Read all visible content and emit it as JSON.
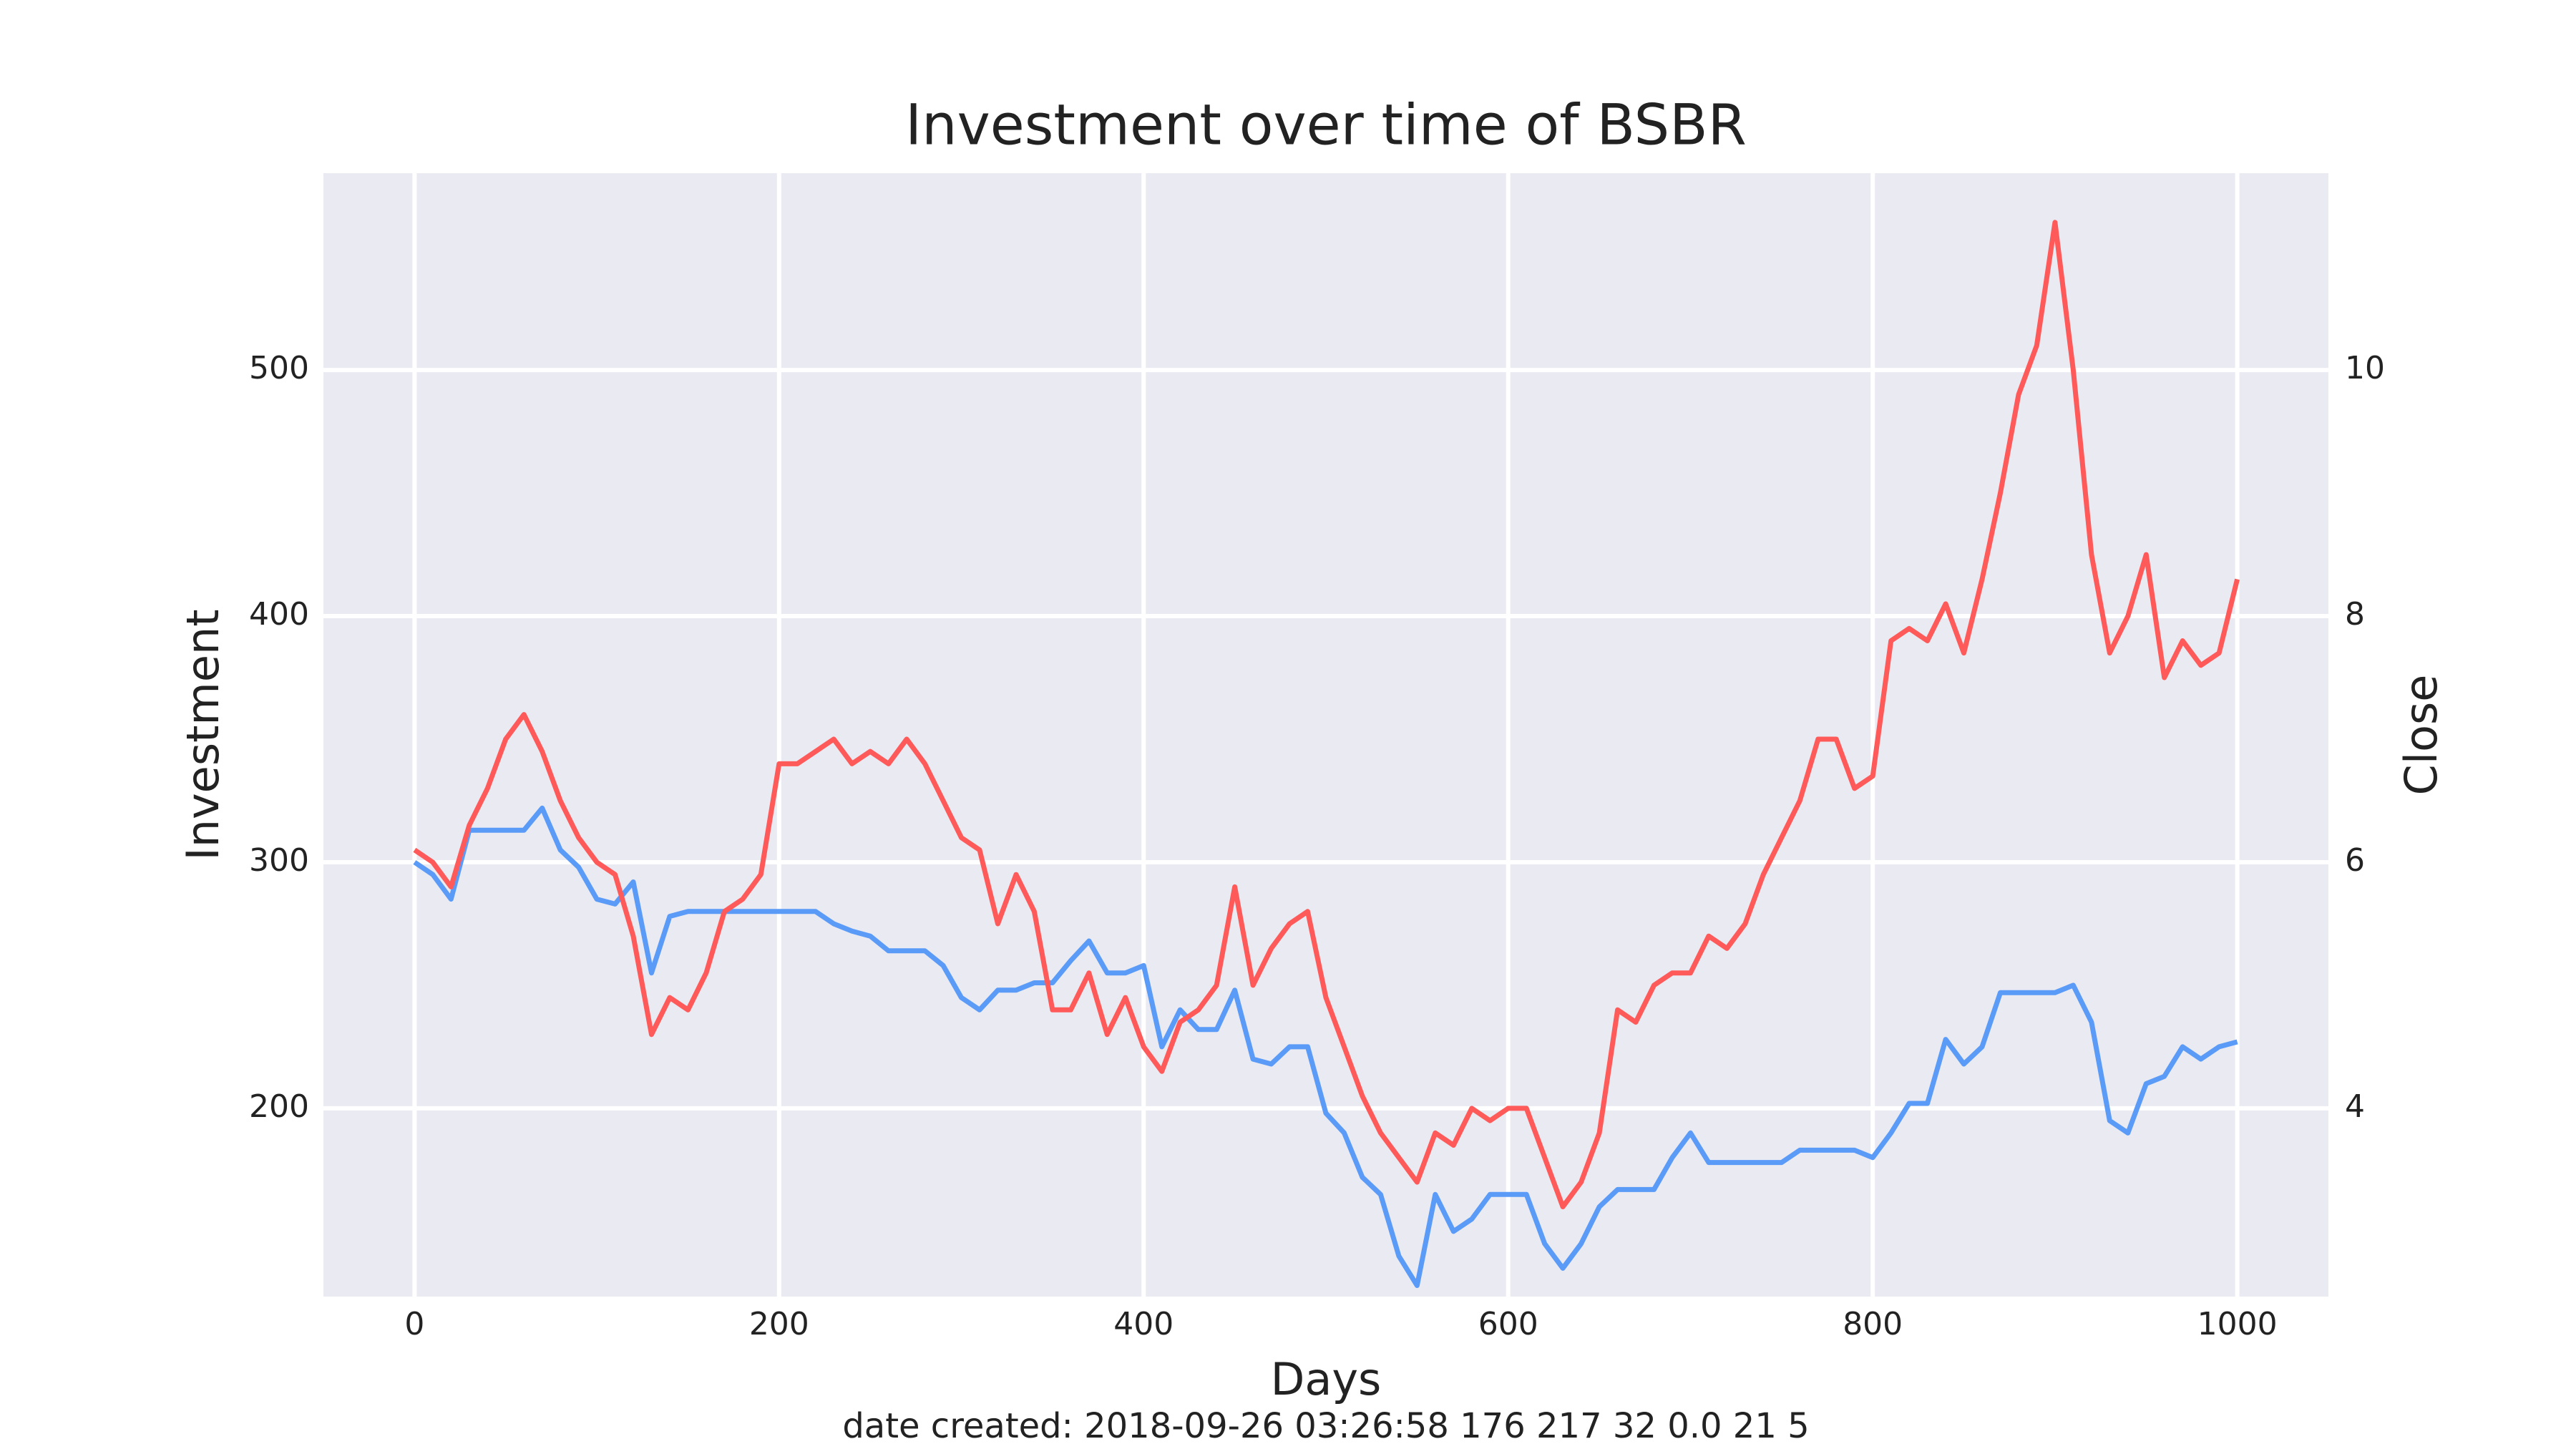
{
  "chart_data": {
    "type": "line",
    "title": "Investment over time of BSBR",
    "xlabel": "Days",
    "footer": "date created: 2018-09-26 03:26:58 176 217 32 0.0 21 5",
    "x": [
      0,
      10,
      20,
      30,
      40,
      50,
      60,
      70,
      80,
      90,
      100,
      110,
      120,
      130,
      140,
      150,
      160,
      170,
      180,
      190,
      200,
      210,
      220,
      230,
      240,
      250,
      260,
      270,
      280,
      290,
      300,
      310,
      320,
      330,
      340,
      350,
      360,
      370,
      380,
      390,
      400,
      410,
      420,
      430,
      440,
      450,
      460,
      470,
      480,
      490,
      500,
      510,
      520,
      530,
      540,
      550,
      560,
      570,
      580,
      590,
      600,
      610,
      620,
      630,
      640,
      650,
      660,
      670,
      680,
      690,
      700,
      710,
      720,
      730,
      740,
      750,
      760,
      770,
      780,
      790,
      800,
      810,
      820,
      830,
      840,
      850,
      860,
      870,
      880,
      890,
      900,
      910,
      920,
      930,
      940,
      950,
      960,
      970,
      980,
      990,
      1000
    ],
    "series": [
      {
        "name": "Investment",
        "color": "#5b9bf8",
        "axis": "y",
        "values": [
          300,
          295,
          285,
          313,
          313,
          313,
          313,
          322,
          305,
          298,
          285,
          283,
          292,
          255,
          278,
          280,
          280,
          280,
          280,
          280,
          280,
          280,
          280,
          275,
          272,
          270,
          264,
          264,
          264,
          258,
          245,
          240,
          248,
          248,
          251,
          251,
          260,
          268,
          255,
          255,
          258,
          225,
          240,
          232,
          232,
          248,
          220,
          218,
          225,
          225,
          198,
          190,
          172,
          165,
          140,
          128,
          165,
          150,
          155,
          165,
          165,
          165,
          145,
          135,
          145,
          160,
          167,
          167,
          167,
          180,
          190,
          178,
          178,
          178,
          178,
          178,
          183,
          183,
          183,
          183,
          180,
          190,
          202,
          202,
          228,
          218,
          225,
          247,
          247,
          247,
          247,
          250,
          235,
          195,
          190,
          210,
          213,
          225,
          220,
          225,
          227
        ]
      },
      {
        "name": "Close",
        "color": "#ff5a5a",
        "axis": "y2",
        "values": [
          6.1,
          6.0,
          5.8,
          6.3,
          6.6,
          7.0,
          7.2,
          6.9,
          6.5,
          6.2,
          6.0,
          5.9,
          5.4,
          4.6,
          4.9,
          4.8,
          5.1,
          5.6,
          5.7,
          5.9,
          6.8,
          6.8,
          6.9,
          7.0,
          6.8,
          6.9,
          6.8,
          7.0,
          6.8,
          6.5,
          6.2,
          6.1,
          5.5,
          5.9,
          5.6,
          4.8,
          4.8,
          5.1,
          4.6,
          4.9,
          4.5,
          4.3,
          4.7,
          4.8,
          5.0,
          5.8,
          5.0,
          5.3,
          5.5,
          5.6,
          4.9,
          4.5,
          4.1,
          3.8,
          3.6,
          3.4,
          3.8,
          3.7,
          4.0,
          3.9,
          4.0,
          4.0,
          3.6,
          3.2,
          3.4,
          3.8,
          4.8,
          4.7,
          5.0,
          5.1,
          5.1,
          5.4,
          5.3,
          5.5,
          5.9,
          6.2,
          6.5,
          7.0,
          7.0,
          6.6,
          6.7,
          7.8,
          7.9,
          7.8,
          8.1,
          7.7,
          8.3,
          9.0,
          9.8,
          10.2,
          11.2,
          10.0,
          8.5,
          7.7,
          8.0,
          8.5,
          7.5,
          7.8,
          7.6,
          7.7,
          8.3
        ]
      }
    ],
    "xlim": [
      -50,
      1050
    ],
    "xticks": [
      0,
      200,
      400,
      600,
      800,
      1000
    ],
    "ylim": [
      123.5,
      580
    ],
    "yticks": [
      200,
      300,
      400,
      500
    ],
    "y2lim": [
      2.47,
      11.6
    ],
    "y2ticks": [
      4,
      6,
      8,
      10
    ],
    "grid": true,
    "background": "#eaeaf2"
  }
}
